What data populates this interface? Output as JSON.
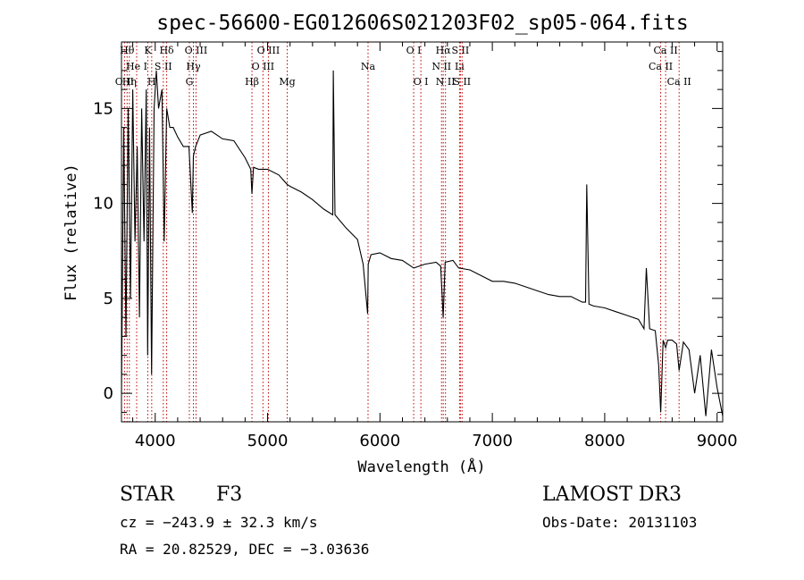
{
  "chart_data": {
    "type": "line",
    "title": "spec-56600-EG012606S021203F02_sp05-064.fits",
    "xlabel": "Wavelength (Å)",
    "ylabel": "Flux (relative)",
    "xlim": [
      3700,
      9050
    ],
    "ylim": [
      -1.5,
      18.5
    ],
    "x_ticks": [
      4000,
      5000,
      6000,
      7000,
      8000,
      9000
    ],
    "y_ticks": [
      0,
      5,
      10,
      15
    ],
    "x_tick_labels": [
      "4000",
      "5000",
      "6000",
      "7000",
      "8000",
      "9000"
    ],
    "y_tick_labels": [
      "0",
      "5",
      "10",
      "15"
    ],
    "series": [
      {
        "name": "spectrum",
        "x": [
          3700,
          3720,
          3740,
          3760,
          3780,
          3800,
          3820,
          3840,
          3860,
          3880,
          3900,
          3920,
          3933,
          3950,
          3968,
          3990,
          4010,
          4030,
          4060,
          4080,
          4102,
          4130,
          4160,
          4200,
          4250,
          4300,
          4330,
          4340,
          4360,
          4400,
          4500,
          4600,
          4700,
          4800,
          4850,
          4861,
          4875,
          4920,
          5000,
          5100,
          5175,
          5200,
          5300,
          5400,
          5500,
          5580,
          5585,
          5600,
          5700,
          5800,
          5850,
          5890,
          5896,
          5920,
          6000,
          6100,
          6200,
          6300,
          6400,
          6500,
          6540,
          6563,
          6580,
          6650,
          6700,
          6800,
          6900,
          7000,
          7100,
          7200,
          7300,
          7400,
          7500,
          7600,
          7700,
          7800,
          7830,
          7840,
          7860,
          7900,
          8000,
          8100,
          8200,
          8300,
          8350,
          8370,
          8400,
          8450,
          8480,
          8498,
          8520,
          8542,
          8560,
          8600,
          8640,
          8662,
          8700,
          8750,
          8800,
          8850,
          8900,
          8950,
          9000,
          9050
        ],
        "y": [
          0,
          14,
          3,
          15,
          5,
          16,
          8,
          13,
          4,
          15,
          8,
          16,
          2,
          14,
          1,
          15,
          17,
          15,
          16,
          8,
          15,
          14,
          14,
          13.5,
          13,
          13,
          9.5,
          12.5,
          13,
          13.6,
          13.8,
          13.4,
          13.3,
          12.4,
          11.8,
          10.5,
          11.9,
          11.8,
          11.8,
          11.5,
          11,
          10.9,
          10.6,
          10.2,
          9.7,
          9.4,
          17,
          9.4,
          8.7,
          8.1,
          6.8,
          4.2,
          6.8,
          7.3,
          7.4,
          7.1,
          7,
          6.6,
          6.8,
          6.9,
          6.7,
          4,
          6.9,
          7,
          6.6,
          6.5,
          6.2,
          5.9,
          5.9,
          5.8,
          5.6,
          5.4,
          5.2,
          5.1,
          5.1,
          4.8,
          4.8,
          11,
          4.7,
          4.6,
          4.5,
          4.3,
          4.1,
          3.9,
          3.4,
          6.6,
          3.4,
          3.3,
          1.5,
          -1,
          2.8,
          2.4,
          2.8,
          2.8,
          2.6,
          1.2,
          2.7,
          2.3,
          0,
          2,
          -1.2,
          2.3,
          0.3,
          -1.2
        ]
      }
    ],
    "line_markers": [
      {
        "name": "O II",
        "wavelength": 3727,
        "row": 2
      },
      {
        "name": "Hθ",
        "wavelength": 3750,
        "row": 0
      },
      {
        "name": "Hη",
        "wavelength": 3770,
        "row": 2
      },
      {
        "name": "He I",
        "wavelength": 3835,
        "row": 1
      },
      {
        "name": "K",
        "wavelength": 3934,
        "row": 0
      },
      {
        "name": "H",
        "wavelength": 3969,
        "row": 2
      },
      {
        "name": "S II",
        "wavelength": 4072,
        "row": 1
      },
      {
        "name": "Hδ",
        "wavelength": 4102,
        "row": 0
      },
      {
        "name": "G",
        "wavelength": 4304,
        "row": 2
      },
      {
        "name": "Hγ",
        "wavelength": 4340,
        "row": 1
      },
      {
        "name": "O III",
        "wavelength": 4363,
        "row": 0
      },
      {
        "name": "Hβ",
        "wavelength": 4861,
        "row": 2
      },
      {
        "name": "O III",
        "wavelength": 4959,
        "row": 1
      },
      {
        "name": "O III",
        "wavelength": 5007,
        "row": 0
      },
      {
        "name": "Mg",
        "wavelength": 5175,
        "row": 2
      },
      {
        "name": "Na",
        "wavelength": 5894,
        "row": 1
      },
      {
        "name": "O I",
        "wavelength": 6300,
        "row": 0
      },
      {
        "name": "O I",
        "wavelength": 6364,
        "row": 2
      },
      {
        "name": "N II",
        "wavelength": 6548,
        "row": 1
      },
      {
        "name": "Hα",
        "wavelength": 6563,
        "row": 0
      },
      {
        "name": "N II",
        "wavelength": 6583,
        "row": 2
      },
      {
        "name": "Li",
        "wavelength": 6708,
        "row": 1
      },
      {
        "name": "S II",
        "wavelength": 6716,
        "row": 0
      },
      {
        "name": "S II",
        "wavelength": 6731,
        "row": 2
      },
      {
        "name": "Ca II",
        "wavelength": 8498,
        "row": 1
      },
      {
        "name": "Ca II",
        "wavelength": 8542,
        "row": 0
      },
      {
        "name": "Ca II",
        "wavelength": 8662,
        "row": 2
      }
    ],
    "marker_color": "#c00000",
    "line_color": "#000000"
  },
  "info": {
    "object_class": "STAR",
    "subclass": "F3",
    "survey": "LAMOST DR3",
    "cz": "cz = −243.9 ± 32.3 km/s",
    "obs_date": "Obs-Date: 20131103",
    "coords": "RA =  20.82529, DEC =  −3.03636"
  }
}
